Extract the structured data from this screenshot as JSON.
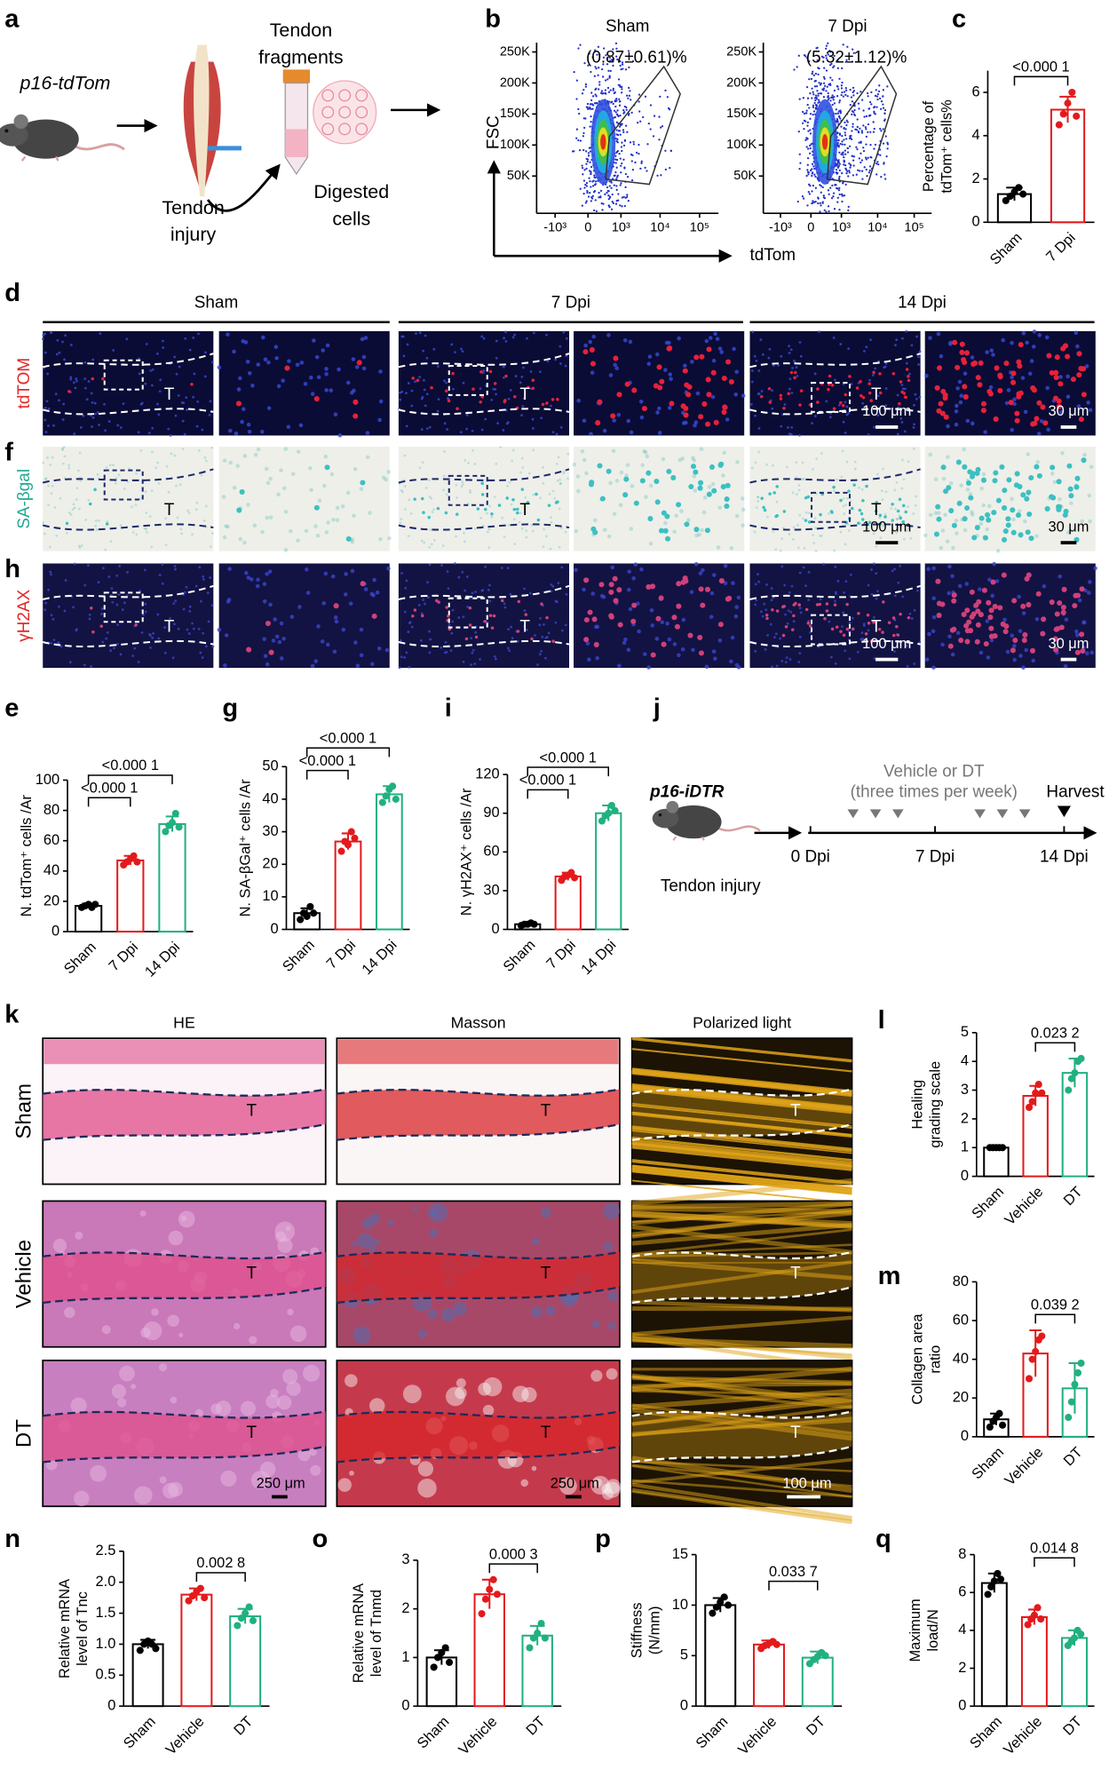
{
  "figure": {
    "a": {
      "letter": "a",
      "mouse": "p16-tdTom",
      "fragments": [
        "Tendon",
        "fragments"
      ],
      "injury": [
        "Tendon",
        "injury"
      ],
      "cells": [
        "Digested",
        "cells"
      ]
    },
    "b": {
      "letter": "b",
      "ylabel": "FSC",
      "xlabel": "tdTom"
    },
    "d": {
      "letter": "d",
      "columns": [
        "Sham",
        "7 Dpi",
        "14 Dpi"
      ],
      "stain": "tdTOM"
    },
    "f": {
      "letter": "f",
      "stain": "SA-βgal"
    },
    "h": {
      "letter": "h",
      "stain": "γH2AX"
    },
    "micrograph": {
      "tendon": "T",
      "scale_low": "100 μm",
      "scale_high": "30 μm"
    },
    "j": {
      "letter": "j",
      "mouse": "p16-iDTR",
      "injury": "Tendon injury",
      "treatment": [
        "Vehicle or DT",
        "(three times per week)"
      ],
      "harvest": "Harvest",
      "timepoints": [
        "0 Dpi",
        "7 Dpi",
        "14 Dpi"
      ]
    },
    "k": {
      "letter": "k",
      "columns": [
        "HE",
        "Masson",
        "Polarized light"
      ],
      "rows": [
        "Sham",
        "Vehicle",
        "DT"
      ],
      "tendon": "T",
      "scale_low": "250 μm",
      "scale_high": "100 μm"
    }
  },
  "chart_data": [
    {
      "type": "bar",
      "panel": "c",
      "ylabel": [
        "Percentage of",
        "tdTom⁺ cells%"
      ],
      "categories": [
        "Sham",
        "7 Dpi"
      ],
      "colors": [
        "#000000",
        "#e31a1c"
      ],
      "values": [
        1.3,
        5.2
      ],
      "errors": [
        0.3,
        0.6
      ],
      "points": [
        [
          1.0,
          1.2,
          1.4,
          1.6,
          1.3
        ],
        [
          4.5,
          5.0,
          5.5,
          6.0,
          4.9
        ]
      ],
      "ylim": [
        0,
        7
      ],
      "yticks": [
        0,
        2,
        4,
        6
      ],
      "comparisons": [
        {
          "pair": [
            0,
            1
          ],
          "label": "<0.000 1"
        }
      ]
    },
    {
      "type": "bar",
      "panel": "e",
      "ylabel": [
        "N. tdTom⁺ cells /Ar"
      ],
      "categories": [
        "Sham",
        "7 Dpi",
        "14 Dpi"
      ],
      "colors": [
        "#000000",
        "#e31a1c",
        "#21b07f"
      ],
      "values": [
        17,
        47,
        71
      ],
      "errors": [
        1.5,
        3,
        5
      ],
      "points": [
        [
          16,
          17,
          18,
          16,
          18
        ],
        [
          44,
          46,
          48,
          50,
          46
        ],
        [
          66,
          70,
          72,
          78,
          69
        ]
      ],
      "ylim": [
        0,
        100
      ],
      "yticks": [
        0,
        20,
        40,
        60,
        80,
        100
      ],
      "comparisons": [
        {
          "pair": [
            0,
            1
          ],
          "label": "<0.000 1"
        },
        {
          "pair": [
            0,
            2
          ],
          "label": "<0.000 1"
        }
      ]
    },
    {
      "type": "bar",
      "panel": "g",
      "ylabel": [
        "N. SA-βGal⁺ cells /Ar"
      ],
      "categories": [
        "Sham",
        "7 Dpi",
        "14 Dpi"
      ],
      "colors": [
        "#000000",
        "#e31a1c",
        "#21b07f"
      ],
      "values": [
        5,
        27,
        41.5
      ],
      "errors": [
        1.5,
        2.5,
        2.5
      ],
      "points": [
        [
          3,
          5,
          4,
          7,
          5
        ],
        [
          24,
          27,
          26,
          30,
          28
        ],
        [
          39,
          41,
          43,
          44,
          40
        ]
      ],
      "ylim": [
        0,
        50
      ],
      "yticks": [
        0,
        10,
        20,
        30,
        40,
        50
      ],
      "comparisons": [
        {
          "pair": [
            0,
            1
          ],
          "label": "<0.000 1"
        },
        {
          "pair": [
            0,
            2
          ],
          "label": "<0.000 1"
        }
      ]
    },
    {
      "type": "bar",
      "panel": "i",
      "ylabel": [
        "N. γH2AX⁺ cells /Ar"
      ],
      "categories": [
        "Sham",
        "7 Dpi",
        "14 Dpi"
      ],
      "colors": [
        "#000000",
        "#e31a1c",
        "#21b07f"
      ],
      "values": [
        4,
        41,
        90
      ],
      "errors": [
        1,
        3,
        6
      ],
      "points": [
        [
          3,
          4,
          4,
          5,
          4
        ],
        [
          38,
          41,
          42,
          44,
          40
        ],
        [
          84,
          88,
          90,
          96,
          92
        ]
      ],
      "ylim": [
        0,
        120
      ],
      "yticks": [
        0,
        30,
        60,
        90,
        120
      ],
      "comparisons": [
        {
          "pair": [
            0,
            1
          ],
          "label": "<0.000 1"
        },
        {
          "pair": [
            0,
            2
          ],
          "label": "<0.000 1"
        }
      ]
    },
    {
      "type": "bar",
      "panel": "l",
      "ylabel": [
        "Healing",
        "grading scale"
      ],
      "categories": [
        "Sham",
        "Vehicle",
        "DT"
      ],
      "colors": [
        "#000000",
        "#e31a1c",
        "#21b07f"
      ],
      "values": [
        1,
        2.8,
        3.6
      ],
      "errors": [
        0,
        0.35,
        0.5
      ],
      "points": [
        [
          1,
          1,
          1,
          1,
          1
        ],
        [
          2.4,
          2.6,
          2.9,
          3.2,
          2.9
        ],
        [
          3.0,
          3.4,
          3.6,
          4.0,
          4.1
        ]
      ],
      "ylim": [
        0,
        5
      ],
      "yticks": [
        0,
        1,
        2,
        3,
        4,
        5
      ],
      "comparisons": [
        {
          "pair": [
            1,
            2
          ],
          "label": "0.023 2"
        }
      ]
    },
    {
      "type": "bar",
      "panel": "m",
      "ylabel": [
        "Collagen area",
        "ratio"
      ],
      "categories": [
        "Sham",
        "Vehicle",
        "DT"
      ],
      "colors": [
        "#000000",
        "#e31a1c",
        "#21b07f"
      ],
      "values": [
        9,
        43,
        25
      ],
      "errors": [
        3,
        12,
        13
      ],
      "points": [
        [
          5,
          8,
          10,
          12,
          6
        ],
        [
          30,
          40,
          44,
          50,
          52
        ],
        [
          10,
          18,
          27,
          33,
          38
        ]
      ],
      "ylim": [
        0,
        80
      ],
      "yticks": [
        0,
        20,
        40,
        60,
        80
      ],
      "comparisons": [
        {
          "pair": [
            1,
            2
          ],
          "label": "0.039 2"
        }
      ]
    },
    {
      "type": "bar",
      "panel": "n",
      "ylabel": [
        "Relative mRNA",
        "level of Tnc"
      ],
      "categories": [
        "Sham",
        "Vehicle",
        "DT"
      ],
      "colors": [
        "#000000",
        "#e31a1c",
        "#21b07f"
      ],
      "values": [
        1.0,
        1.8,
        1.45
      ],
      "errors": [
        0.07,
        0.1,
        0.12
      ],
      "points": [
        [
          0.9,
          1.0,
          1.05,
          1.0,
          0.93
        ],
        [
          1.7,
          1.78,
          1.85,
          1.9,
          1.75
        ],
        [
          1.3,
          1.42,
          1.5,
          1.6,
          1.38
        ]
      ],
      "ylim": [
        0,
        2.5
      ],
      "yticks": [
        0,
        0.5,
        {
          "value": 1,
          "label": "1.0"
        },
        1.5,
        {
          "value": 2,
          "label": "2.0"
        },
        2.5
      ],
      "comparisons": [
        {
          "pair": [
            1,
            2
          ],
          "label": "0.002 8"
        }
      ]
    },
    {
      "type": "bar",
      "panel": "o",
      "ylabel": [
        "Relative mRNA",
        "level of Tnmd"
      ],
      "categories": [
        "Sham",
        "Vehicle",
        "DT"
      ],
      "colors": [
        "#000000",
        "#e31a1c",
        "#21b07f"
      ],
      "values": [
        1.0,
        2.3,
        1.45
      ],
      "errors": [
        0.15,
        0.3,
        0.2
      ],
      "points": [
        [
          0.8,
          1.0,
          1.1,
          1.2,
          0.9
        ],
        [
          1.9,
          2.2,
          2.4,
          2.6,
          2.3
        ],
        [
          1.2,
          1.4,
          1.5,
          1.7,
          1.4
        ]
      ],
      "ylim": [
        0,
        3
      ],
      "yticks": [
        0,
        1,
        2,
        3
      ],
      "comparisons": [
        {
          "pair": [
            1,
            2
          ],
          "label": "0.000 3"
        }
      ]
    },
    {
      "type": "bar",
      "panel": "p",
      "ylabel": [
        "Stiffness",
        "(N/mm)"
      ],
      "categories": [
        "Sham",
        "Vehicle",
        "DT"
      ],
      "colors": [
        "#000000",
        "#e31a1c",
        "#21b07f"
      ],
      "values": [
        10,
        6.1,
        4.8
      ],
      "errors": [
        0.7,
        0.4,
        0.6
      ],
      "points": [
        [
          9.2,
          9.8,
          10.3,
          10.8,
          10.0
        ],
        [
          5.7,
          6.0,
          6.2,
          6.4,
          6.1
        ],
        [
          4.2,
          4.6,
          4.9,
          5.3,
          5.0
        ]
      ],
      "ylim": [
        0,
        15
      ],
      "yticks": [
        0,
        5,
        10,
        15
      ],
      "comparisons": [
        {
          "pair": [
            1,
            2
          ],
          "label": "0.033 7"
        }
      ]
    },
    {
      "type": "bar",
      "panel": "q",
      "ylabel": [
        "Maximum",
        "load/N"
      ],
      "categories": [
        "Sham",
        "Vehicle",
        "DT"
      ],
      "colors": [
        "#000000",
        "#e31a1c",
        "#21b07f"
      ],
      "values": [
        6.5,
        4.7,
        3.6
      ],
      "errors": [
        0.5,
        0.4,
        0.4
      ],
      "points": [
        [
          5.9,
          6.3,
          6.6,
          7.0,
          6.7
        ],
        [
          4.3,
          4.6,
          4.8,
          5.2,
          4.6
        ],
        [
          3.2,
          3.4,
          3.6,
          4.0,
          3.8
        ]
      ],
      "ylim": [
        0,
        8
      ],
      "yticks": [
        0,
        2,
        4,
        6,
        8
      ],
      "comparisons": [
        {
          "pair": [
            1,
            2
          ],
          "label": "0.014 8"
        }
      ]
    },
    {
      "type": "density",
      "title": "Sham",
      "annotation": "(0.87±0.61)%",
      "xscale": "asinh",
      "xlim": [
        -3000,
        300000
      ],
      "xticks": [
        {
          "value": -1000,
          "label": "-10³"
        },
        0,
        {
          "value": 1000,
          "label": "10³"
        },
        {
          "value": 10000,
          "label": "10⁴"
        },
        {
          "value": 100000,
          "label": "10⁵"
        }
      ],
      "ylim": [
        -10000,
        265000
      ],
      "yticks": [
        {
          "value": 50000,
          "label": "50K"
        },
        {
          "value": 100000,
          "label": "100K"
        },
        {
          "value": 150000,
          "label": "150K"
        },
        {
          "value": 200000,
          "label": "200K"
        },
        {
          "value": 250000,
          "label": "250K"
        }
      ]
    },
    {
      "type": "density",
      "title": "7 Dpi",
      "annotation": "(5.32±1.12)%",
      "xscale": "asinh",
      "xlim": [
        -3000,
        300000
      ],
      "xticks": [
        {
          "value": -1000,
          "label": "-10³"
        },
        0,
        {
          "value": 1000,
          "label": "10³"
        },
        {
          "value": 10000,
          "label": "10⁴"
        },
        {
          "value": 100000,
          "label": "10⁵"
        }
      ],
      "ylim": [
        -10000,
        265000
      ],
      "yticks": [
        {
          "value": 50000,
          "label": "50K"
        },
        {
          "value": 100000,
          "label": "100K"
        },
        {
          "value": 150000,
          "label": "150K"
        },
        {
          "value": 200000,
          "label": "200K"
        },
        {
          "value": 250000,
          "label": "250K"
        }
      ]
    }
  ]
}
